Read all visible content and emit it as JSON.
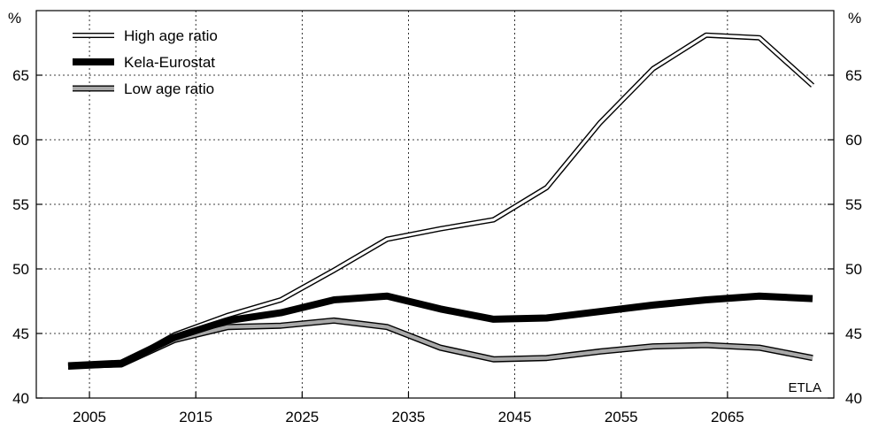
{
  "chart_data": {
    "type": "line",
    "title": "",
    "xlabel": "",
    "ylabel_left": "%",
    "ylabel_right": "%",
    "x_ticks": [
      "2005",
      "2015",
      "2025",
      "2035",
      "2045",
      "2055",
      "2065"
    ],
    "y_ticks": [
      "40",
      "45",
      "50",
      "55",
      "60",
      "65"
    ],
    "xlim": [
      2000,
      2075
    ],
    "ylim": [
      40,
      70
    ],
    "grid": true,
    "legend_position": "top-left",
    "watermark": "ETLA",
    "x": [
      2003,
      2008,
      2013,
      2018,
      2023,
      2028,
      2033,
      2038,
      2043,
      2048,
      2053,
      2058,
      2063,
      2068,
      2073
    ],
    "series": [
      {
        "name": "High age ratio",
        "style": "hollow",
        "values": [
          42.4,
          42.6,
          44.9,
          46.4,
          47.6,
          49.9,
          52.3,
          53.1,
          53.8,
          56.3,
          61.3,
          65.5,
          68.1,
          67.9,
          64.2
        ]
      },
      {
        "name": "Kela-Eurostat",
        "style": "black",
        "values": [
          42.5,
          42.7,
          44.7,
          46.0,
          46.6,
          47.6,
          47.9,
          46.9,
          46.1,
          46.2,
          46.7,
          47.2,
          47.6,
          47.9,
          47.7
        ]
      },
      {
        "name": "Low age ratio",
        "style": "gray",
        "values": [
          42.5,
          42.6,
          44.5,
          45.5,
          45.6,
          46.0,
          45.5,
          43.9,
          43.0,
          43.1,
          43.6,
          44.0,
          44.1,
          43.9,
          43.1
        ]
      }
    ],
    "colors": {
      "axis": "#000000",
      "grid": "#000000",
      "gray_fill": "#a8a8a8",
      "black": "#000000",
      "hollow_fill": "#ffffff"
    }
  }
}
